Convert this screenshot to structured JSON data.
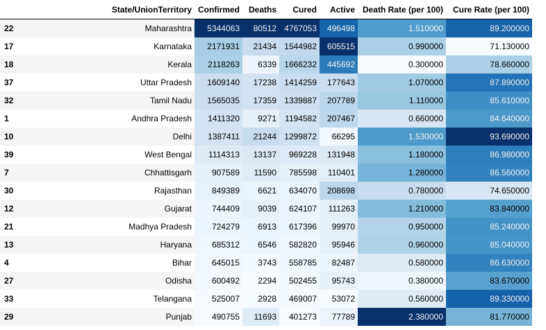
{
  "table": {
    "columns": [
      "State/UnionTerritory",
      "Confirmed",
      "Deaths",
      "Cured",
      "Active",
      "Death Rate (per 100)",
      "Cure Rate (per 100)"
    ],
    "rows": [
      {
        "index": "22",
        "state": "Maharashtra",
        "confirmed": "5344063",
        "deaths": "80512",
        "cured": "4767053",
        "active": "496498",
        "death_rate": "1.510000",
        "cure_rate": "89.200000"
      },
      {
        "index": "17",
        "state": "Karnataka",
        "confirmed": "2171931",
        "deaths": "21434",
        "cured": "1544982",
        "active": "605515",
        "death_rate": "0.990000",
        "cure_rate": "71.130000"
      },
      {
        "index": "18",
        "state": "Kerala",
        "confirmed": "2118263",
        "deaths": "6339",
        "cured": "1666232",
        "active": "445692",
        "death_rate": "0.300000",
        "cure_rate": "78.660000"
      },
      {
        "index": "37",
        "state": "Uttar Pradesh",
        "confirmed": "1609140",
        "deaths": "17238",
        "cured": "1414259",
        "active": "177643",
        "death_rate": "1.070000",
        "cure_rate": "87.890000"
      },
      {
        "index": "32",
        "state": "Tamil Nadu",
        "confirmed": "1565035",
        "deaths": "17359",
        "cured": "1339887",
        "active": "207789",
        "death_rate": "1.110000",
        "cure_rate": "85.610000"
      },
      {
        "index": "1",
        "state": "Andhra Pradesh",
        "confirmed": "1411320",
        "deaths": "9271",
        "cured": "1194582",
        "active": "207467",
        "death_rate": "0.660000",
        "cure_rate": "84.640000"
      },
      {
        "index": "10",
        "state": "Delhi",
        "confirmed": "1387411",
        "deaths": "21244",
        "cured": "1299872",
        "active": "66295",
        "death_rate": "1.530000",
        "cure_rate": "93.690000"
      },
      {
        "index": "39",
        "state": "West Bengal",
        "confirmed": "1114313",
        "deaths": "13137",
        "cured": "969228",
        "active": "131948",
        "death_rate": "1.180000",
        "cure_rate": "86.980000"
      },
      {
        "index": "7",
        "state": "Chhattisgarh",
        "confirmed": "907589",
        "deaths": "11590",
        "cured": "785598",
        "active": "110401",
        "death_rate": "1.280000",
        "cure_rate": "86.560000"
      },
      {
        "index": "30",
        "state": "Rajasthan",
        "confirmed": "849389",
        "deaths": "6621",
        "cured": "634070",
        "active": "208698",
        "death_rate": "0.780000",
        "cure_rate": "74.650000"
      },
      {
        "index": "12",
        "state": "Gujarat",
        "confirmed": "744409",
        "deaths": "9039",
        "cured": "624107",
        "active": "111263",
        "death_rate": "1.210000",
        "cure_rate": "83.840000"
      },
      {
        "index": "21",
        "state": "Madhya Pradesh",
        "confirmed": "724279",
        "deaths": "6913",
        "cured": "617396",
        "active": "99970",
        "death_rate": "0.950000",
        "cure_rate": "85.240000"
      },
      {
        "index": "13",
        "state": "Haryana",
        "confirmed": "685312",
        "deaths": "6546",
        "cured": "582820",
        "active": "95946",
        "death_rate": "0.960000",
        "cure_rate": "85.040000"
      },
      {
        "index": "4",
        "state": "Bihar",
        "confirmed": "645015",
        "deaths": "3743",
        "cured": "558785",
        "active": "82487",
        "death_rate": "0.580000",
        "cure_rate": "86.630000"
      },
      {
        "index": "27",
        "state": "Odisha",
        "confirmed": "600492",
        "deaths": "2294",
        "cured": "502455",
        "active": "95743",
        "death_rate": "0.380000",
        "cure_rate": "83.670000"
      },
      {
        "index": "33",
        "state": "Telangana",
        "confirmed": "525007",
        "deaths": "2928",
        "cured": "469007",
        "active": "53072",
        "death_rate": "0.560000",
        "cure_rate": "89.330000"
      },
      {
        "index": "29",
        "state": "Punjab",
        "confirmed": "490755",
        "deaths": "11693",
        "cured": "401273",
        "active": "77789",
        "death_rate": "2.380000",
        "cure_rate": "81.770000"
      }
    ]
  },
  "colormap": {
    "name": "Blues",
    "stops": [
      "#f7fbff",
      "#deebf7",
      "#c6dbef",
      "#9ecae1",
      "#6baed6",
      "#4292c6",
      "#2171b5",
      "#08519c",
      "#08306b"
    ],
    "light_text": "#f1f1f1",
    "dark_text": "#000000"
  }
}
